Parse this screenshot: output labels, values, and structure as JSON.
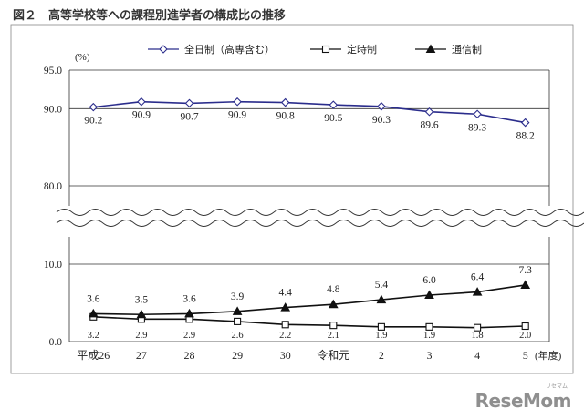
{
  "figure": {
    "title": "図２　高等学校等への課程別進学者の構成比の推移"
  },
  "brand": {
    "name": "ReseMom",
    "small": "リセマム"
  },
  "chart_data": {
    "type": "line",
    "categories": [
      "平成26",
      "27",
      "28",
      "29",
      "30",
      "令和元",
      "2",
      "3",
      "4",
      "5"
    ],
    "x_unit": "(年度)",
    "y_unit": "(%)",
    "yaxis": {
      "broken": true,
      "upper_range": [
        80.0,
        95.0
      ],
      "lower_range": [
        0.0,
        10.0
      ],
      "ticks": [
        "95.0",
        "90.0",
        "80.0",
        "10.0",
        "0.0"
      ]
    },
    "grid": true,
    "legend_position": "top",
    "series": [
      {
        "name": "全日制（高専含む）",
        "marker": "diamond",
        "color": "#2b2d8c",
        "values": [
          90.2,
          90.9,
          90.7,
          90.9,
          90.8,
          90.5,
          90.3,
          89.6,
          89.3,
          88.2
        ],
        "labels": [
          "90.2",
          "90.9",
          "90.7",
          "90.9",
          "90.8",
          "90.5",
          "90.3",
          "89.6",
          "89.3",
          "88.2"
        ]
      },
      {
        "name": "定時制",
        "marker": "square",
        "color": "#111111",
        "values": [
          3.2,
          2.9,
          2.9,
          2.6,
          2.2,
          2.1,
          1.9,
          1.9,
          1.8,
          2.0
        ],
        "labels": [
          "3.2",
          "2.9",
          "2.9",
          "2.6",
          "2.2",
          "2.1",
          "1.9",
          "1.9",
          "1.8",
          "2.0"
        ]
      },
      {
        "name": "通信制",
        "marker": "triangle",
        "color": "#111111",
        "values": [
          3.6,
          3.5,
          3.6,
          3.9,
          4.4,
          4.8,
          5.4,
          6.0,
          6.4,
          7.3
        ],
        "labels": [
          "3.6",
          "3.5",
          "3.6",
          "3.9",
          "4.4",
          "4.8",
          "5.4",
          "6.0",
          "6.4",
          "7.3"
        ]
      }
    ]
  }
}
